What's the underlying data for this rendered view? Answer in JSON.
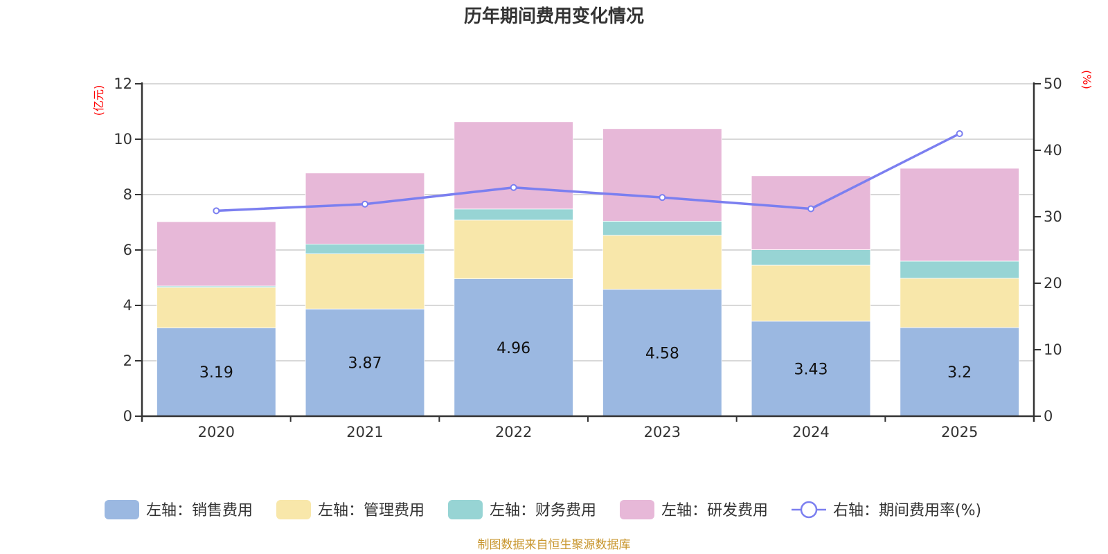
{
  "chart_data": {
    "type": "bar",
    "subtype": "stacked-bar-with-line",
    "title": "历年期间费用变化情况",
    "categories": [
      "2020",
      "2021",
      "2022",
      "2023",
      "2024",
      "2025"
    ],
    "left_axis": {
      "label": "(亿元)",
      "ylim": [
        0,
        12
      ],
      "ticks": [
        0,
        2,
        4,
        6,
        8,
        10,
        12
      ]
    },
    "right_axis": {
      "label": "(%)",
      "ylim": [
        0,
        50
      ],
      "ticks": [
        0,
        10,
        20,
        30,
        40,
        50
      ]
    },
    "grid": true,
    "legend_position": "bottom",
    "series": [
      {
        "name": "左轴：销售费用",
        "axis": "left",
        "type": "bar",
        "color": "#9bb8e1",
        "values": [
          3.19,
          3.87,
          4.96,
          4.58,
          3.43,
          3.2
        ],
        "show_labels": true
      },
      {
        "name": "左轴：管理费用",
        "axis": "left",
        "type": "bar",
        "color": "#f8e7aa",
        "values": [
          1.46,
          1.99,
          2.12,
          1.95,
          2.02,
          1.78
        ]
      },
      {
        "name": "左轴：财务费用",
        "axis": "left",
        "type": "bar",
        "color": "#97d4d4",
        "values": [
          0.05,
          0.35,
          0.4,
          0.51,
          0.56,
          0.62
        ]
      },
      {
        "name": "左轴：研发费用",
        "axis": "left",
        "type": "bar",
        "color": "#e7b8d8",
        "values": [
          2.32,
          2.57,
          3.15,
          3.34,
          2.67,
          3.35
        ]
      },
      {
        "name": "右轴：期间费用率(%)",
        "axis": "right",
        "type": "line",
        "color": "#7b7ff0",
        "values": [
          30.9,
          31.9,
          34.4,
          32.9,
          31.2,
          42.5
        ]
      }
    ],
    "source_note": "制图数据来自恒生聚源数据库"
  }
}
